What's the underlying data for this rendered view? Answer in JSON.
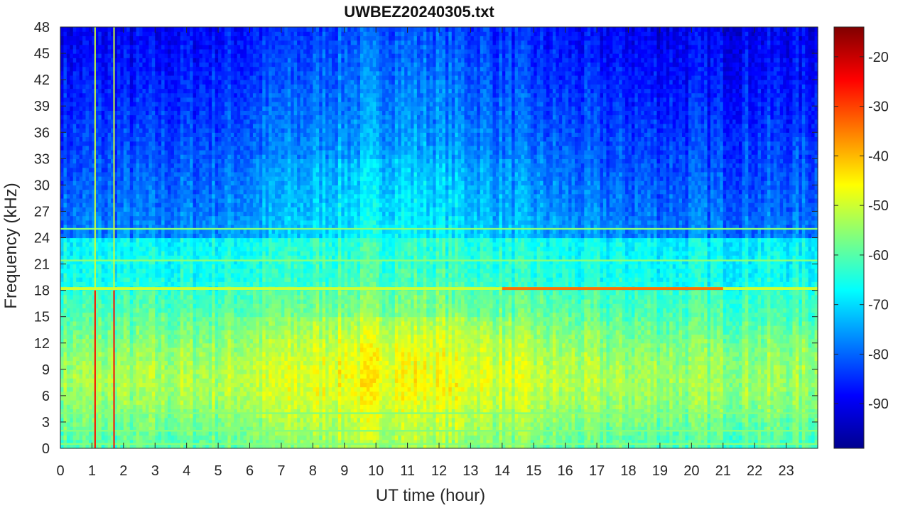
{
  "chart_data": {
    "type": "heatmap",
    "title": "UWBEZ20240305.txt",
    "xlabel": "UT time (hour)",
    "ylabel": "Frequency (kHz)",
    "xlim": [
      0,
      24
    ],
    "ylim": [
      0,
      48
    ],
    "x_ticks": [
      "0",
      "1",
      "2",
      "3",
      "4",
      "5",
      "6",
      "7",
      "8",
      "9",
      "10",
      "11",
      "12",
      "13",
      "14",
      "15",
      "16",
      "17",
      "18",
      "19",
      "20",
      "21",
      "22",
      "23"
    ],
    "y_ticks": [
      "0",
      "3",
      "6",
      "9",
      "12",
      "15",
      "18",
      "21",
      "24",
      "27",
      "30",
      "33",
      "36",
      "39",
      "42",
      "45",
      "48"
    ],
    "colorbar": {
      "colormap": "jet",
      "range": [
        -99,
        -14
      ],
      "ticks": [
        "-90",
        "-80",
        "-70",
        "-60",
        "-50",
        "-40",
        "-30",
        "-20"
      ]
    },
    "features": {
      "persistent_lines_khz": [
        0.5,
        2,
        4,
        18.2,
        21.4,
        25
      ],
      "strong_line_khz": 18.2,
      "intensified_line_hours": [
        14,
        21
      ],
      "broadband_impulses_hour": [
        1.1,
        1.7
      ],
      "daytime_peak_hours": [
        9,
        12
      ],
      "daytime_peak_band_khz": [
        3,
        12
      ]
    }
  }
}
